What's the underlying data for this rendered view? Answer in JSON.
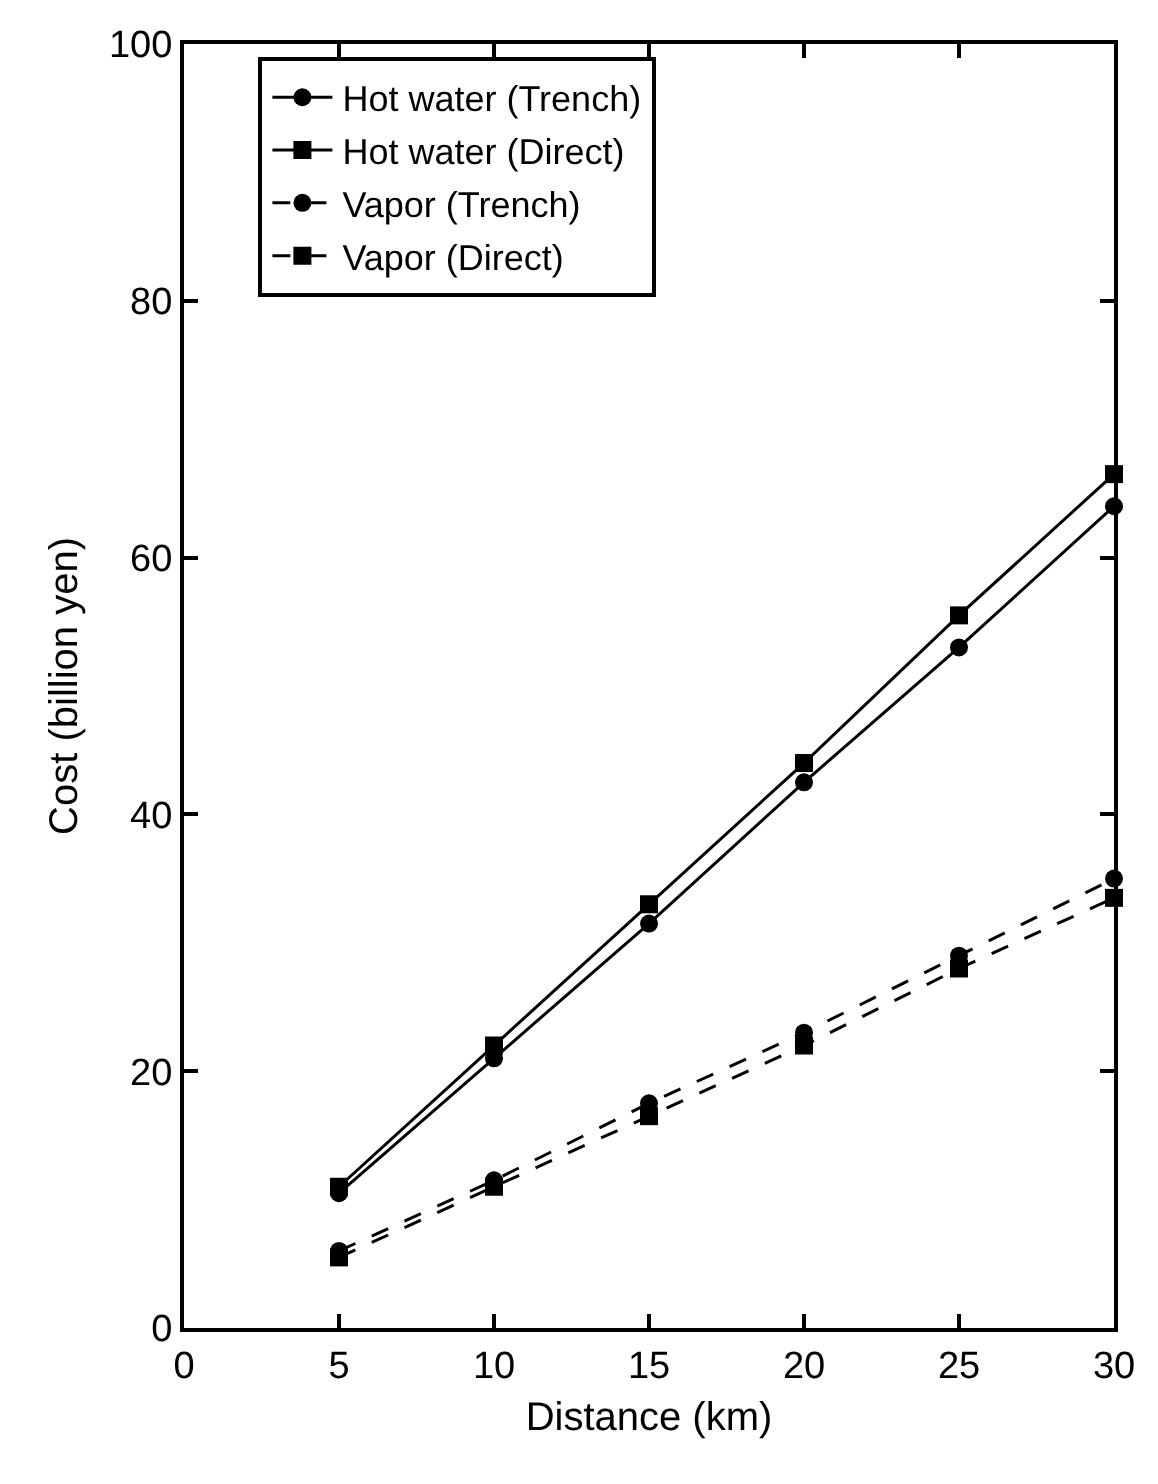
{
  "chart_data": {
    "type": "line",
    "xlabel": "Distance (km)",
    "ylabel": "Cost (billion yen)",
    "x": [
      5,
      10,
      15,
      20,
      25,
      30
    ],
    "xlim": [
      0,
      30
    ],
    "xticks": [
      0,
      5,
      10,
      15,
      20,
      25,
      30
    ],
    "ylim": [
      0,
      100
    ],
    "yticks": [
      0,
      20,
      40,
      60,
      80,
      100
    ],
    "grid": false,
    "legend": "top",
    "series": [
      {
        "name": "Hot water (Trench)",
        "color": "#000000",
        "marker": "circle",
        "line_style": "solid",
        "values": [
          10.5,
          21,
          31.5,
          42.5,
          53,
          64
        ]
      },
      {
        "name": "Hot water (Direct)",
        "color": "#000000",
        "marker": "square",
        "line_style": "solid",
        "values": [
          11,
          22,
          33,
          44,
          55.5,
          66.5
        ]
      },
      {
        "name": "Vapor (Trench)",
        "color": "#000000",
        "marker": "circle",
        "line_style": "dashed",
        "values": [
          6,
          11.5,
          17.5,
          23,
          29,
          35
        ]
      },
      {
        "name": "Vapor (Direct)",
        "color": "#000000",
        "marker": "square",
        "line_style": "dashed",
        "values": [
          5.5,
          11,
          16.5,
          22,
          28,
          33.5
        ]
      }
    ]
  }
}
